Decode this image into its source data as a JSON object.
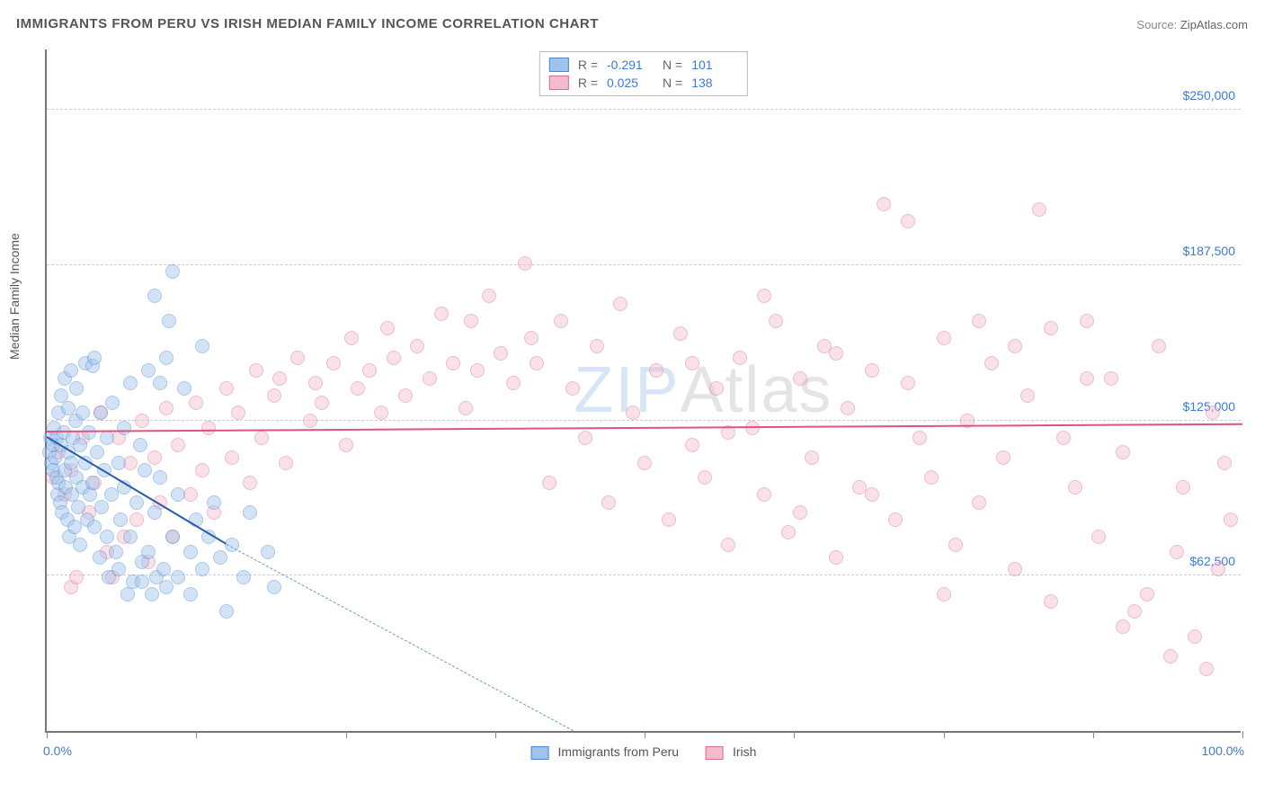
{
  "title": "IMMIGRANTS FROM PERU VS IRISH MEDIAN FAMILY INCOME CORRELATION CHART",
  "source_label": "Source:",
  "source_value": "ZipAtlas.com",
  "y_axis_label": "Median Family Income",
  "chart": {
    "type": "scatter",
    "background_color": "#ffffff",
    "grid_color": "#cccccc",
    "axis_color": "#777777",
    "xlim": [
      0,
      100
    ],
    "ylim": [
      0,
      275000
    ],
    "y_gridlines": [
      62500,
      125000,
      187500,
      250000
    ],
    "y_tick_labels": [
      "$62,500",
      "$125,000",
      "$187,500",
      "$250,000"
    ],
    "x_ticks": [
      0,
      12.5,
      25,
      37.5,
      50,
      62.5,
      75,
      87.5,
      100
    ],
    "x_min_label": "0.0%",
    "x_max_label": "100.0%",
    "marker_radius": 8,
    "marker_opacity": 0.45,
    "series": [
      {
        "name": "Immigrants from Peru",
        "fill_color": "#9ec3ed",
        "stroke_color": "#4a87cf",
        "r_value": "-0.291",
        "n_value": "101",
        "trend": {
          "x0": 0,
          "y0": 118000,
          "x1": 15,
          "y1": 75000,
          "color": "#2a5ba8",
          "width": 2
        },
        "trend_ext": {
          "x0": 15,
          "y0": 75000,
          "x1": 44,
          "y1": 0,
          "color": "#6a9ad0",
          "width": 1,
          "dashed": true
        },
        "points": [
          [
            0.2,
            112000
          ],
          [
            0.3,
            118000
          ],
          [
            0.4,
            108000
          ],
          [
            0.5,
            115000
          ],
          [
            0.5,
            105000
          ],
          [
            0.6,
            122000
          ],
          [
            0.7,
            110000
          ],
          [
            0.8,
            102000
          ],
          [
            0.8,
            118000
          ],
          [
            0.9,
            95000
          ],
          [
            1.0,
            128000
          ],
          [
            1.0,
            100000
          ],
          [
            1.1,
            92000
          ],
          [
            1.2,
            115000
          ],
          [
            1.2,
            135000
          ],
          [
            1.3,
            88000
          ],
          [
            1.4,
            120000
          ],
          [
            1.5,
            105000
          ],
          [
            1.5,
            142000
          ],
          [
            1.6,
            98000
          ],
          [
            1.7,
            85000
          ],
          [
            1.8,
            112000
          ],
          [
            1.8,
            130000
          ],
          [
            1.9,
            78000
          ],
          [
            2.0,
            108000
          ],
          [
            2.0,
            145000
          ],
          [
            2.1,
            95000
          ],
          [
            2.2,
            118000
          ],
          [
            2.3,
            82000
          ],
          [
            2.4,
            125000
          ],
          [
            2.5,
            102000
          ],
          [
            2.5,
            138000
          ],
          [
            2.6,
            90000
          ],
          [
            2.8,
            115000
          ],
          [
            2.8,
            75000
          ],
          [
            3.0,
            128000
          ],
          [
            3.0,
            98000
          ],
          [
            3.2,
            108000
          ],
          [
            3.2,
            148000
          ],
          [
            3.4,
            85000
          ],
          [
            3.5,
            120000
          ],
          [
            3.6,
            95000
          ],
          [
            3.8,
            100000
          ],
          [
            3.8,
            147000
          ],
          [
            4.0,
            82000
          ],
          [
            4.0,
            150000
          ],
          [
            4.2,
            112000
          ],
          [
            4.4,
            70000
          ],
          [
            4.5,
            128000
          ],
          [
            4.6,
            90000
          ],
          [
            4.8,
            105000
          ],
          [
            5.0,
            78000
          ],
          [
            5.0,
            118000
          ],
          [
            5.2,
            62000
          ],
          [
            5.4,
            95000
          ],
          [
            5.5,
            132000
          ],
          [
            5.8,
            72000
          ],
          [
            6.0,
            108000
          ],
          [
            6.0,
            65000
          ],
          [
            6.2,
            85000
          ],
          [
            6.5,
            98000
          ],
          [
            6.5,
            122000
          ],
          [
            6.8,
            55000
          ],
          [
            7.0,
            140000
          ],
          [
            7.0,
            78000
          ],
          [
            7.2,
            60000
          ],
          [
            7.5,
            92000
          ],
          [
            7.8,
            115000
          ],
          [
            8.0,
            68000
          ],
          [
            8.0,
            60000
          ],
          [
            8.2,
            105000
          ],
          [
            8.5,
            145000
          ],
          [
            8.5,
            72000
          ],
          [
            8.8,
            55000
          ],
          [
            9.0,
            88000
          ],
          [
            9.0,
            175000
          ],
          [
            9.2,
            62000
          ],
          [
            9.5,
            140000
          ],
          [
            9.5,
            102000
          ],
          [
            9.8,
            65000
          ],
          [
            10.0,
            58000
          ],
          [
            10.0,
            150000
          ],
          [
            10.2,
            165000
          ],
          [
            10.5,
            78000
          ],
          [
            10.5,
            185000
          ],
          [
            11.0,
            62000
          ],
          [
            11.0,
            95000
          ],
          [
            11.5,
            138000
          ],
          [
            12.0,
            72000
          ],
          [
            12.0,
            55000
          ],
          [
            12.5,
            85000
          ],
          [
            13.0,
            65000
          ],
          [
            13.0,
            155000
          ],
          [
            13.5,
            78000
          ],
          [
            14.0,
            92000
          ],
          [
            14.5,
            70000
          ],
          [
            15.0,
            48000
          ],
          [
            15.5,
            75000
          ],
          [
            16.5,
            62000
          ],
          [
            17.0,
            88000
          ],
          [
            18.5,
            72000
          ],
          [
            19.0,
            58000
          ]
        ]
      },
      {
        "name": "Irish",
        "fill_color": "#f4bccb",
        "stroke_color": "#d96e8f",
        "r_value": "0.025",
        "n_value": "138",
        "trend": {
          "x0": 0,
          "y0": 120000,
          "x1": 100,
          "y1": 123000,
          "color": "#e0547c",
          "width": 2
        },
        "points": [
          [
            0.5,
            102000
          ],
          [
            1.0,
            112000
          ],
          [
            1.5,
            95000
          ],
          [
            2.0,
            105000
          ],
          [
            2.0,
            58000
          ],
          [
            2.5,
            62000
          ],
          [
            3.0,
            118000
          ],
          [
            3.5,
            88000
          ],
          [
            4.0,
            100000
          ],
          [
            4.5,
            128000
          ],
          [
            5.0,
            72000
          ],
          [
            5.5,
            62000
          ],
          [
            6.0,
            118000
          ],
          [
            6.5,
            78000
          ],
          [
            7.0,
            108000
          ],
          [
            7.5,
            85000
          ],
          [
            8.0,
            125000
          ],
          [
            8.5,
            68000
          ],
          [
            9.0,
            110000
          ],
          [
            9.5,
            92000
          ],
          [
            10.0,
            130000
          ],
          [
            10.5,
            78000
          ],
          [
            11.0,
            115000
          ],
          [
            12.0,
            95000
          ],
          [
            12.5,
            132000
          ],
          [
            13.0,
            105000
          ],
          [
            13.5,
            122000
          ],
          [
            14.0,
            88000
          ],
          [
            15.0,
            138000
          ],
          [
            15.5,
            110000
          ],
          [
            16.0,
            128000
          ],
          [
            17.0,
            100000
          ],
          [
            17.5,
            145000
          ],
          [
            18.0,
            118000
          ],
          [
            19.0,
            135000
          ],
          [
            19.5,
            142000
          ],
          [
            20.0,
            108000
          ],
          [
            21.0,
            150000
          ],
          [
            22.0,
            125000
          ],
          [
            22.5,
            140000
          ],
          [
            23.0,
            132000
          ],
          [
            24.0,
            148000
          ],
          [
            25.0,
            115000
          ],
          [
            25.5,
            158000
          ],
          [
            26.0,
            138000
          ],
          [
            27.0,
            145000
          ],
          [
            28.0,
            128000
          ],
          [
            28.5,
            162000
          ],
          [
            29.0,
            150000
          ],
          [
            30.0,
            135000
          ],
          [
            31.0,
            155000
          ],
          [
            32.0,
            142000
          ],
          [
            33.0,
            168000
          ],
          [
            34.0,
            148000
          ],
          [
            35.0,
            130000
          ],
          [
            35.5,
            165000
          ],
          [
            36.0,
            145000
          ],
          [
            37.0,
            175000
          ],
          [
            38.0,
            152000
          ],
          [
            39.0,
            140000
          ],
          [
            40.0,
            188000
          ],
          [
            40.5,
            158000
          ],
          [
            41.0,
            148000
          ],
          [
            42.0,
            100000
          ],
          [
            43.0,
            165000
          ],
          [
            44.0,
            138000
          ],
          [
            45.0,
            118000
          ],
          [
            46.0,
            155000
          ],
          [
            47.0,
            92000
          ],
          [
            48.0,
            172000
          ],
          [
            49.0,
            128000
          ],
          [
            50.0,
            108000
          ],
          [
            51.0,
            145000
          ],
          [
            52.0,
            85000
          ],
          [
            53.0,
            160000
          ],
          [
            54.0,
            115000
          ],
          [
            55.0,
            102000
          ],
          [
            56.0,
            138000
          ],
          [
            57.0,
            75000
          ],
          [
            58.0,
            150000
          ],
          [
            59.0,
            122000
          ],
          [
            60.0,
            95000
          ],
          [
            61.0,
            165000
          ],
          [
            62.0,
            80000
          ],
          [
            63.0,
            142000
          ],
          [
            64.0,
            110000
          ],
          [
            65.0,
            155000
          ],
          [
            66.0,
            70000
          ],
          [
            67.0,
            130000
          ],
          [
            68.0,
            98000
          ],
          [
            69.0,
            145000
          ],
          [
            70.0,
            212000
          ],
          [
            71.0,
            85000
          ],
          [
            72.0,
            205000
          ],
          [
            73.0,
            118000
          ],
          [
            74.0,
            102000
          ],
          [
            75.0,
            158000
          ],
          [
            76.0,
            75000
          ],
          [
            77.0,
            125000
          ],
          [
            78.0,
            92000
          ],
          [
            79.0,
            148000
          ],
          [
            80.0,
            110000
          ],
          [
            81.0,
            65000
          ],
          [
            82.0,
            135000
          ],
          [
            83.0,
            210000
          ],
          [
            84.0,
            52000
          ],
          [
            85.0,
            118000
          ],
          [
            86.0,
            98000
          ],
          [
            87.0,
            165000
          ],
          [
            88.0,
            78000
          ],
          [
            89.0,
            142000
          ],
          [
            90.0,
            112000
          ],
          [
            91.0,
            48000
          ],
          [
            92.0,
            55000
          ],
          [
            93.0,
            155000
          ],
          [
            94.0,
            30000
          ],
          [
            94.5,
            72000
          ],
          [
            95.0,
            98000
          ],
          [
            96.0,
            38000
          ],
          [
            97.0,
            25000
          ],
          [
            97.5,
            128000
          ],
          [
            98.0,
            65000
          ],
          [
            98.5,
            108000
          ],
          [
            99.0,
            85000
          ],
          [
            90.0,
            42000
          ],
          [
            87.0,
            142000
          ],
          [
            84.0,
            162000
          ],
          [
            81.0,
            155000
          ],
          [
            78.0,
            165000
          ],
          [
            75.0,
            55000
          ],
          [
            72.0,
            140000
          ],
          [
            69.0,
            95000
          ],
          [
            66.0,
            152000
          ],
          [
            63.0,
            88000
          ],
          [
            60.0,
            175000
          ],
          [
            57.0,
            120000
          ],
          [
            54.0,
            148000
          ]
        ]
      }
    ]
  },
  "legend_top": {
    "r_label": "R =",
    "n_label": "N ="
  },
  "watermark": {
    "part1": "ZIP",
    "part2": "Atlas"
  }
}
